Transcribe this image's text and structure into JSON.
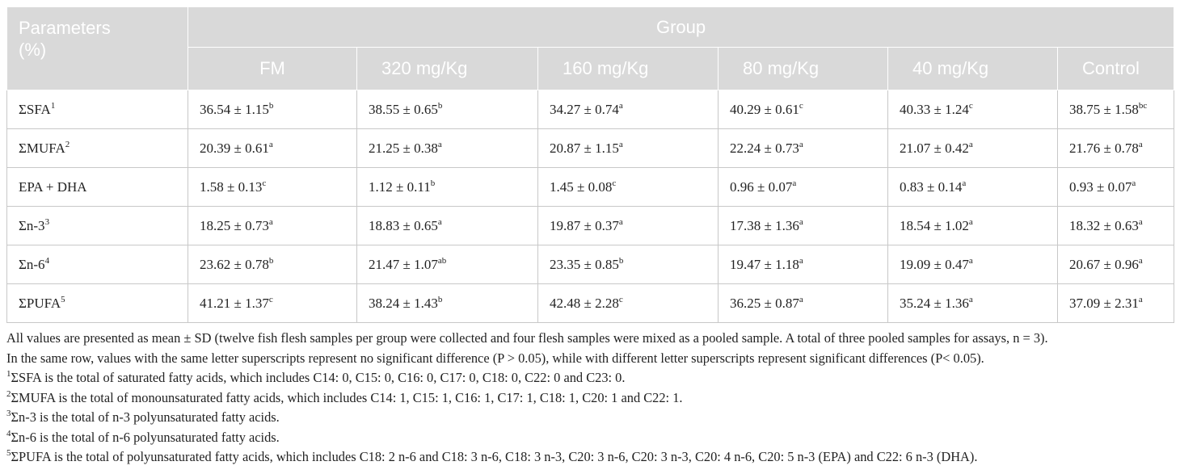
{
  "table": {
    "header": {
      "parameters": "Parameters (%)",
      "group": "Group",
      "columns": [
        "FM",
        "320 mg/Kg",
        "160 mg/Kg",
        "80 mg/Kg",
        "40 mg/Kg",
        "Control"
      ]
    },
    "rows": [
      {
        "label": "ΣSFA",
        "label_sup": "1",
        "cells": [
          {
            "value": "36.54 ± 1.15",
            "sup": "b"
          },
          {
            "value": "38.55 ± 0.65",
            "sup": "b"
          },
          {
            "value": "34.27 ± 0.74",
            "sup": "a"
          },
          {
            "value": "40.29 ± 0.61",
            "sup": "c"
          },
          {
            "value": "40.33 ± 1.24",
            "sup": "c"
          },
          {
            "value": "38.75 ± 1.58",
            "sup": "bc"
          }
        ]
      },
      {
        "label": "ΣMUFA",
        "label_sup": "2",
        "cells": [
          {
            "value": "20.39 ± 0.61",
            "sup": "a"
          },
          {
            "value": "21.25 ± 0.38",
            "sup": "a"
          },
          {
            "value": "20.87 ± 1.15",
            "sup": "a"
          },
          {
            "value": "22.24 ± 0.73",
            "sup": "a"
          },
          {
            "value": "21.07 ± 0.42",
            "sup": "a"
          },
          {
            "value": "21.76 ± 0.78",
            "sup": "a"
          }
        ]
      },
      {
        "label": "EPA + DHA",
        "cells": [
          {
            "value": "1.58 ± 0.13",
            "sup": "c"
          },
          {
            "value": "1.12 ± 0.11",
            "sup": "b"
          },
          {
            "value": "1.45 ± 0.08",
            "sup": "c"
          },
          {
            "value": "0.96 ± 0.07",
            "sup": "a"
          },
          {
            "value": "0.83 ± 0.14",
            "sup": "a"
          },
          {
            "value": "0.93 ± 0.07",
            "sup": "a"
          }
        ]
      },
      {
        "label": "Σn-3",
        "label_sup": "3",
        "cells": [
          {
            "value": "18.25 ± 0.73",
            "sup": "a"
          },
          {
            "value": "18.83 ± 0.65",
            "sup": "a"
          },
          {
            "value": "19.87 ± 0.37",
            "sup": "a"
          },
          {
            "value": "17.38 ± 1.36",
            "sup": "a"
          },
          {
            "value": "18.54 ± 1.02",
            "sup": "a"
          },
          {
            "value": "18.32 ± 0.63",
            "sup": "a"
          }
        ]
      },
      {
        "label": "Σn-6",
        "label_sup": "4",
        "cells": [
          {
            "value": "23.62 ± 0.78",
            "sup": "b"
          },
          {
            "value": "21.47 ± 1.07",
            "sup": "ab"
          },
          {
            "value": "23.35 ± 0.85",
            "sup": "b"
          },
          {
            "value": "19.47 ± 1.18",
            "sup": "a"
          },
          {
            "value": "19.09 ± 0.47",
            "sup": "a"
          },
          {
            "value": "20.67 ± 0.96",
            "sup": "a"
          }
        ]
      },
      {
        "label": "ΣPUFA",
        "label_sup": "5",
        "cells": [
          {
            "value": "41.21 ± 1.37",
            "sup": "c"
          },
          {
            "value": "38.24 ± 1.43",
            "sup": "b"
          },
          {
            "value": "42.48 ± 2.28",
            "sup": "c"
          },
          {
            "value": "36.25 ± 0.87",
            "sup": "a"
          },
          {
            "value": "35.24 ± 1.36",
            "sup": "a"
          },
          {
            "value": "37.09 ± 2.31",
            "sup": "a"
          }
        ]
      }
    ]
  },
  "notes": [
    "All values are presented as mean ± SD (twelve fish flesh samples per group were collected and four flesh samples were mixed as a pooled sample. A total of three pooled samples for assays, n = 3).",
    "In the same row, values with the same letter superscripts represent no significant difference (P > 0.05), while with different letter superscripts represent significant differences (P< 0.05)."
  ],
  "footnotes": [
    {
      "mark": "1",
      "text": "ΣSFA is the total of saturated fatty acids, which includes C14: 0, C15: 0, C16: 0, C17: 0, C18: 0, C22: 0 and C23: 0."
    },
    {
      "mark": "2",
      "text": "ΣMUFA is the total of monounsaturated fatty acids, which includes C14: 1, C15: 1, C16: 1, C17: 1, C18: 1, C20: 1 and C22: 1."
    },
    {
      "mark": "3",
      "text": "Σn-3 is the total of n-3 polyunsaturated fatty acids."
    },
    {
      "mark": "4",
      "text": "Σn-6 is the total of n-6 polyunsaturated fatty acids."
    },
    {
      "mark": "5",
      "text": "ΣPUFA is the total of polyunsaturated fatty acids, which includes C18: 2 n-6 and C18: 3 n-6, C18: 3 n-3, C20: 3 n-6, C20: 3 n-3, C20: 4 n-6, C20: 5 n-3 (EPA) and C22: 6 n-3 (DHA)."
    }
  ]
}
